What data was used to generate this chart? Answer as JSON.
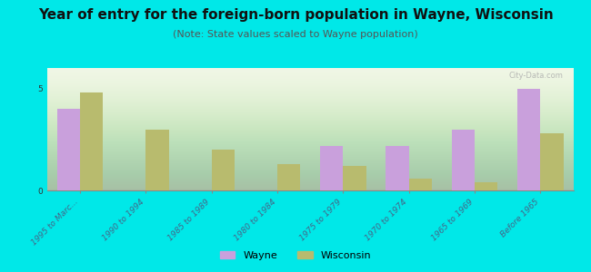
{
  "title": "Year of entry for the foreign-born population in Wayne, Wisconsin",
  "subtitle": "(Note: State values scaled to Wayne population)",
  "categories": [
    "1995 to Marc...",
    "1990 to 1994",
    "1985 to 1989",
    "1980 to 1984",
    "1975 to 1979",
    "1970 to 1974",
    "1965 to 1969",
    "Before 1965"
  ],
  "wayne_values": [
    4.0,
    0.0,
    0.0,
    0.0,
    2.2,
    2.2,
    3.0,
    5.0
  ],
  "wisconsin_values": [
    4.8,
    3.0,
    2.0,
    1.3,
    1.2,
    0.6,
    0.4,
    2.8
  ],
  "wayne_color": "#c9a0dc",
  "wisconsin_color": "#b8bb6e",
  "background_color": "#00e8e8",
  "plot_bg_color": "#eef5e0",
  "ylim": [
    0,
    6
  ],
  "yticks": [
    0,
    5
  ],
  "bar_width": 0.35,
  "title_fontsize": 11,
  "subtitle_fontsize": 8,
  "tick_fontsize": 6.5,
  "legend_fontsize": 8,
  "watermark": "City-Data.com"
}
